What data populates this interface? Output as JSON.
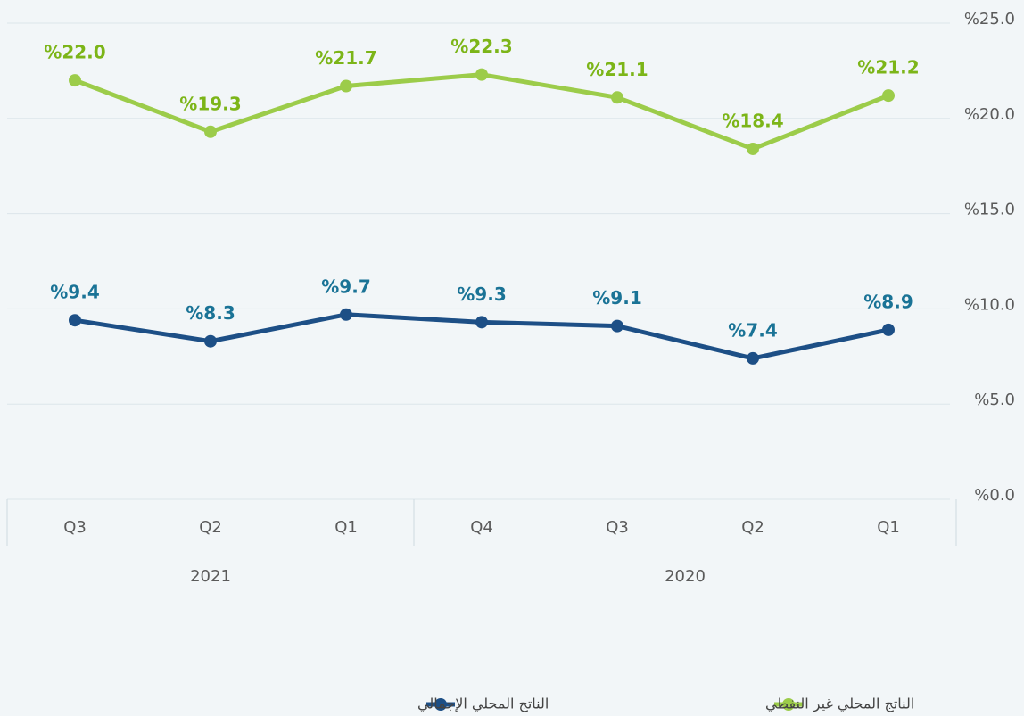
{
  "chart_data": {
    "type": "line",
    "categories": [
      "Q3",
      "Q2",
      "Q1",
      "Q4",
      "Q3",
      "Q2",
      "Q1"
    ],
    "groups": [
      {
        "label": "2021",
        "size": 3
      },
      {
        "label": "2020",
        "size": 4
      }
    ],
    "series": [
      {
        "name": "الناتج المحلي غير النفطي",
        "color": "#9ccc4a",
        "label_color": "#7cb518",
        "values": [
          22.0,
          19.3,
          21.7,
          22.3,
          21.1,
          18.4,
          21.2
        ],
        "value_labels": [
          "%22.0",
          "%19.3",
          "%21.7",
          "%22.3",
          "%21.1",
          "%18.4",
          "%21.2"
        ]
      },
      {
        "name": "الناتج المحلي الإجمالي",
        "color": "#1d4f86",
        "label_color": "#1a7396",
        "values": [
          9.4,
          8.3,
          9.7,
          9.3,
          9.1,
          7.4,
          8.9
        ],
        "value_labels": [
          "%9.4",
          "%8.3",
          "%9.7",
          "%9.3",
          "%9.1",
          "%7.4",
          "%8.9"
        ]
      }
    ],
    "ylim": [
      0,
      25
    ],
    "yticks": [
      {
        "value": 0,
        "label": "%0.0"
      },
      {
        "value": 5,
        "label": "%5.0"
      },
      {
        "value": 10,
        "label": "%10.0"
      },
      {
        "value": 15,
        "label": "%15.0"
      },
      {
        "value": 20,
        "label": "%20.0"
      },
      {
        "value": 25,
        "label": "%25.0"
      }
    ],
    "grid": true
  }
}
